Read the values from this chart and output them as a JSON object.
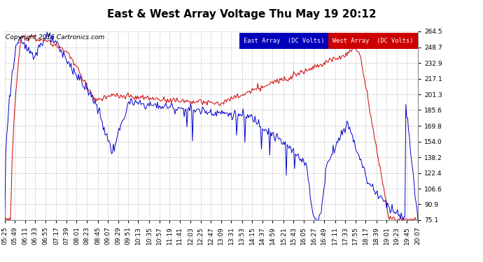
{
  "title": "East & West Array Voltage Thu May 19 20:12",
  "copyright": "Copyright 2016 Cartronics.com",
  "legend_east": "East Array  (DC Volts)",
  "legend_west": "West Array  (DC Volts)",
  "east_color": "#0000cc",
  "west_color": "#cc0000",
  "legend_east_bg": "#0000bb",
  "legend_west_bg": "#cc0000",
  "background_color": "#ffffff",
  "plot_bg_color": "#ffffff",
  "grid_color": "#bbbbbb",
  "ylim_min": 75.1,
  "ylim_max": 264.5,
  "yticks": [
    75.1,
    90.9,
    106.6,
    122.4,
    138.2,
    154.0,
    169.8,
    185.6,
    201.3,
    217.1,
    232.9,
    248.7,
    264.5
  ],
  "title_fontsize": 11,
  "tick_fontsize": 6.5,
  "copyright_fontsize": 6.5,
  "line_width": 0.7,
  "xtick_labels": [
    "05:25",
    "05:49",
    "06:11",
    "06:33",
    "06:55",
    "07:17",
    "07:39",
    "08:01",
    "08:23",
    "08:45",
    "09:07",
    "09:29",
    "09:51",
    "10:13",
    "10:35",
    "10:57",
    "11:19",
    "11:41",
    "12:03",
    "12:25",
    "12:47",
    "13:09",
    "13:31",
    "13:53",
    "14:15",
    "14:37",
    "14:59",
    "15:21",
    "15:43",
    "16:05",
    "16:27",
    "16:49",
    "17:11",
    "17:33",
    "17:55",
    "18:17",
    "18:39",
    "19:01",
    "19:23",
    "19:45",
    "20:07"
  ]
}
